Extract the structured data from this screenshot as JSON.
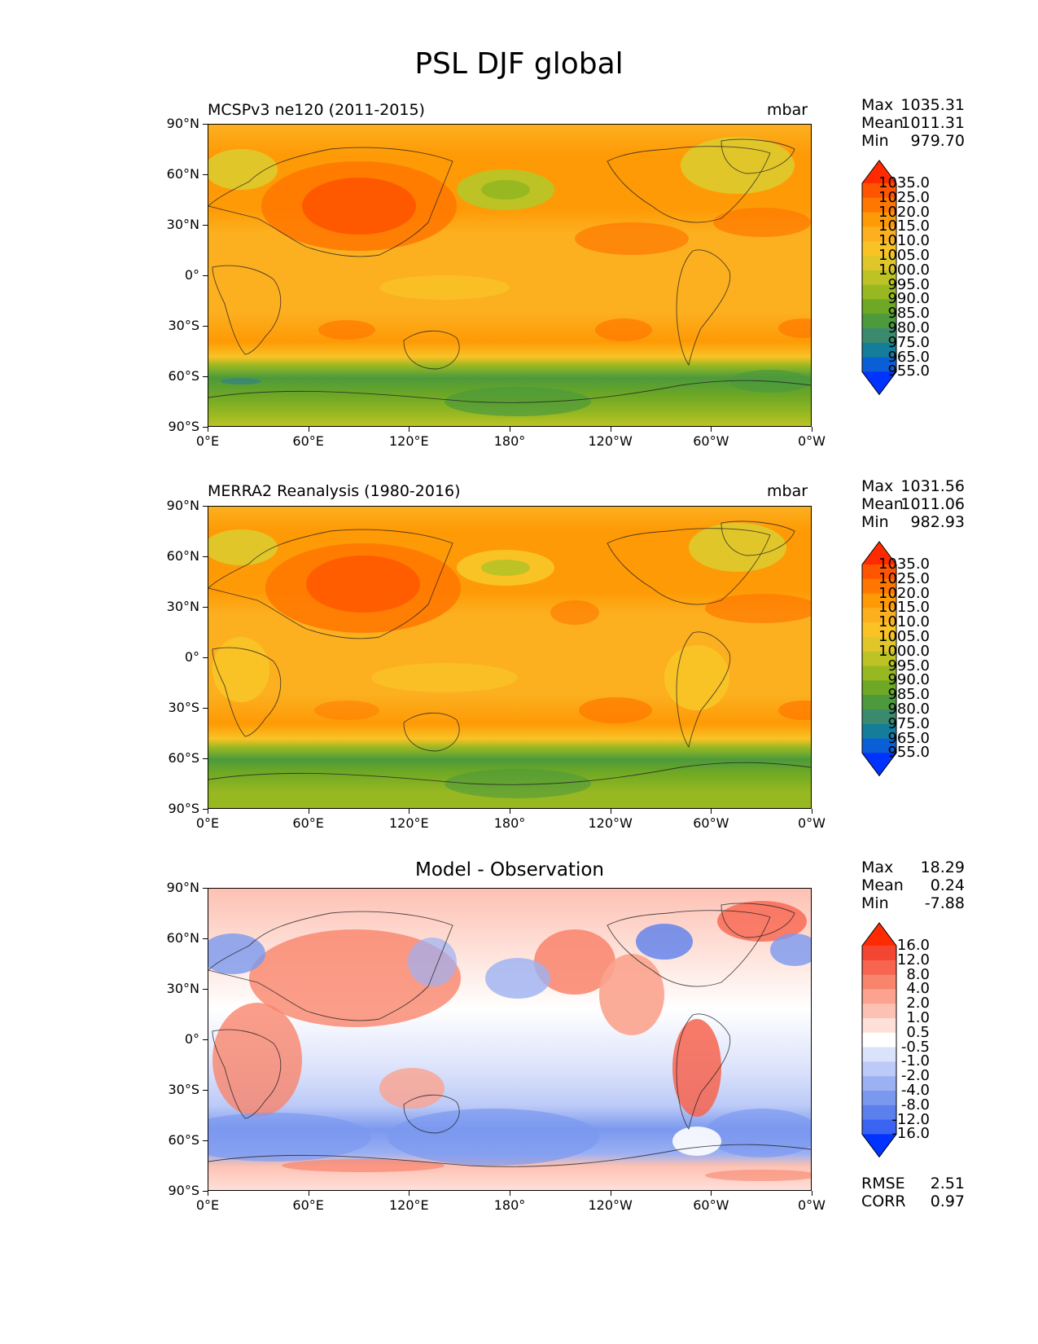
{
  "figure": {
    "title": "PSL DJF global"
  },
  "axes": {
    "lat_ticks": [
      "90°N",
      "60°N",
      "30°N",
      "0°",
      "30°S",
      "60°S",
      "90°S"
    ],
    "lon_ticks": [
      "0°E",
      "60°E",
      "120°E",
      "180°",
      "120°W",
      "60°W",
      "0°W"
    ]
  },
  "panels": [
    {
      "id": "model",
      "title": "MCSPv3 ne120 (2011-2015)",
      "units": "mbar",
      "stats": {
        "max_label": "Max",
        "max": "1035.31",
        "mean_label": "Mean",
        "mean": "1011.31",
        "min_label": "Min",
        "min": "979.70"
      },
      "colorbar": {
        "levels": [
          "1035.0",
          "1025.0",
          "1020.0",
          "1015.0",
          "1010.0",
          "1005.0",
          "1000.0",
          "995.0",
          "990.0",
          "985.0",
          "980.0",
          "975.0",
          "965.0",
          "955.0"
        ],
        "colors": [
          "#ff2a00",
          "#ff5500",
          "#ff7700",
          "#fe9a05",
          "#fcb020",
          "#f9c326",
          "#e1c62a",
          "#bdc324",
          "#98b822",
          "#6ea824",
          "#4c9a3c",
          "#3c8a6e",
          "#147e9a",
          "#0b5fd6",
          "#0033ff"
        ]
      }
    },
    {
      "id": "obs",
      "title": "MERRA2 Reanalysis (1980-2016)",
      "units": "mbar",
      "stats": {
        "max_label": "Max",
        "max": "1031.56",
        "mean_label": "Mean",
        "mean": "1011.06",
        "min_label": "Min",
        "min": "982.93"
      },
      "colorbar": {
        "levels": [
          "1035.0",
          "1025.0",
          "1020.0",
          "1015.0",
          "1010.0",
          "1005.0",
          "1000.0",
          "995.0",
          "990.0",
          "985.0",
          "980.0",
          "975.0",
          "965.0",
          "955.0"
        ],
        "colors": [
          "#ff2a00",
          "#ff5500",
          "#ff7700",
          "#fe9a05",
          "#fcb020",
          "#f9c326",
          "#e1c62a",
          "#bdc324",
          "#98b822",
          "#6ea824",
          "#4c9a3c",
          "#3c8a6e",
          "#147e9a",
          "#0b5fd6",
          "#0033ff"
        ]
      }
    },
    {
      "id": "diff",
      "title": "Model - Observation",
      "units": "",
      "stats": {
        "max_label": "Max",
        "max": "18.29",
        "mean_label": "Mean",
        "mean": "0.24",
        "min_label": "Min",
        "min": "-7.88"
      },
      "extra_stats": {
        "rmse_label": "RMSE",
        "rmse": "2.51",
        "corr_label": "CORR",
        "corr": "0.97"
      },
      "colorbar": {
        "levels": [
          "16.0",
          "12.0",
          "8.0",
          "4.0",
          "2.0",
          "1.0",
          "0.5",
          "-0.5",
          "-1.0",
          "-2.0",
          "-4.0",
          "-8.0",
          "-12.0",
          "-16.0"
        ],
        "colors": [
          "#ff2a00",
          "#f24632",
          "#f7644f",
          "#f9846c",
          "#fba38e",
          "#fdc1b3",
          "#fee0d8",
          "#ffffff",
          "#dbe2fb",
          "#bccaf7",
          "#9cb1f3",
          "#7b98ef",
          "#5b7fec",
          "#3a63f2",
          "#0033ff"
        ]
      }
    }
  ]
}
